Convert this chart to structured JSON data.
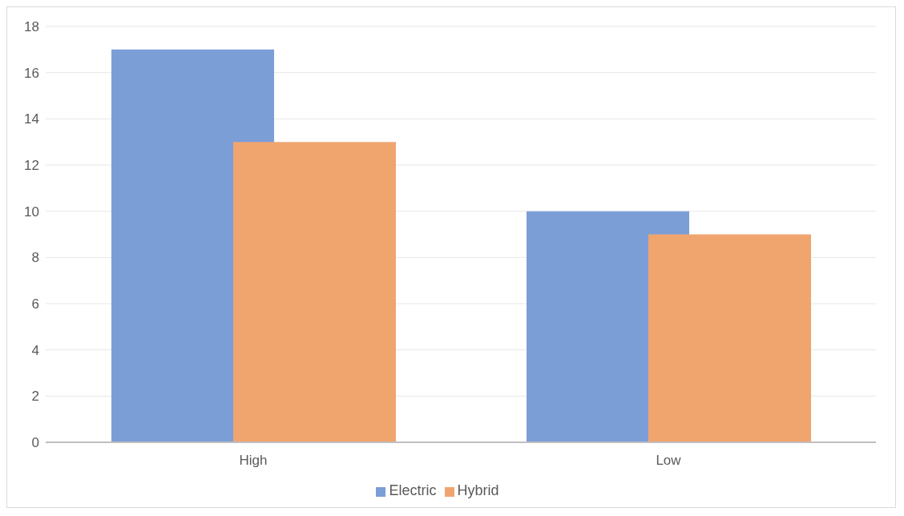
{
  "chart_data": {
    "type": "bar",
    "categories": [
      "High",
      "Low"
    ],
    "series": [
      {
        "name": "Electric",
        "color": "#7b9ed7",
        "values": [
          17,
          10
        ]
      },
      {
        "name": "Hybrid",
        "color": "#f0a56f",
        "values": [
          13,
          9
        ]
      }
    ],
    "ylim": [
      0,
      18
    ],
    "yticks": [
      0,
      2,
      4,
      6,
      8,
      10,
      12,
      14,
      16,
      18
    ],
    "grid": "y",
    "legend": "bottom"
  }
}
